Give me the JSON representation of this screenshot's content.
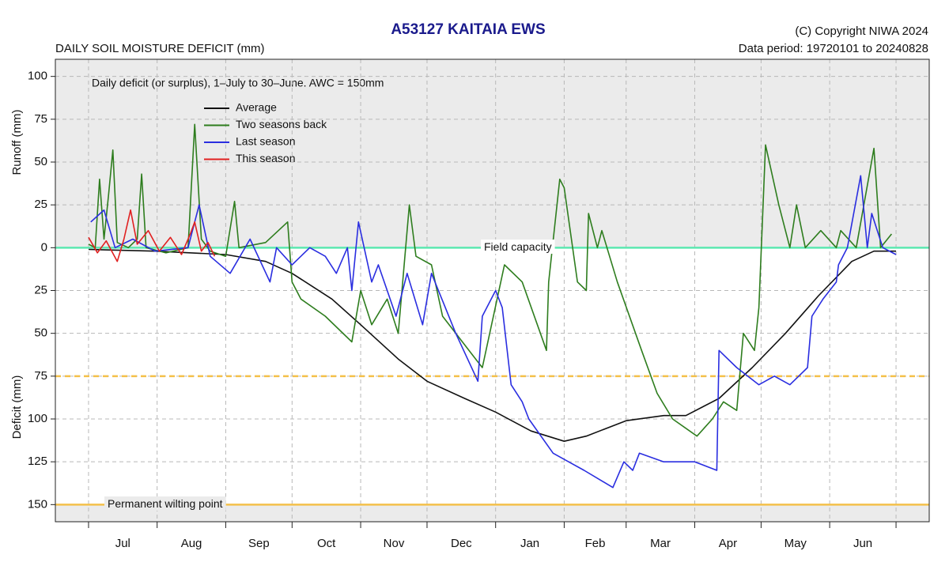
{
  "chart_data": {
    "type": "line",
    "title": "A53127  KAITAIA EWS",
    "subtitle": "DAILY SOIL MOISTURE DEFICIT (mm)",
    "copyright": "(C) Copyright NIWA  2024",
    "data_period": "Data period:  19720101  to  20240828",
    "annotation": "Daily deficit (or surplus), 1–July to 30–June.  AWC = 150mm",
    "y_label_upper": "Runoff (mm)",
    "y_label_lower": "Deficit (mm)",
    "categories": [
      "Jul",
      "Aug",
      "Sep",
      "Oct",
      "Nov",
      "Dec",
      "Jan",
      "Feb",
      "Mar",
      "Apr",
      "May",
      "Jun"
    ],
    "xlim": [
      -15,
      380
    ],
    "xticks": [
      0,
      31,
      62,
      92,
      123,
      153,
      184,
      215,
      243,
      274,
      304,
      335,
      365
    ],
    "ylim": [
      -160,
      110
    ],
    "yticks": [
      100,
      75,
      50,
      25,
      0,
      {
        "value": -25,
        "label": "25"
      },
      {
        "value": -50,
        "label": "50"
      },
      {
        "value": -75,
        "label": "75"
      },
      {
        "value": -100,
        "label": "100"
      },
      {
        "value": -125,
        "label": "125"
      },
      {
        "value": -150,
        "label": "150"
      }
    ],
    "grid": true,
    "reference_lines": [
      {
        "value": 0,
        "label": "Field capacity",
        "color": "#5ce8b0",
        "style": "solid",
        "shade": "above"
      },
      {
        "value": -75,
        "color": "#f4c04a",
        "style": "dashed"
      },
      {
        "value": -150,
        "label": "Permanent wilting point",
        "color": "#f4c04a",
        "style": "solid",
        "shade": "below"
      }
    ],
    "series": [
      {
        "name": "Average",
        "color": "#111111",
        "x": [
          0,
          30,
          62,
          80,
          92,
          110,
          123,
          140,
          153,
          170,
          184,
          200,
          215,
          225,
          243,
          260,
          270,
          285,
          300,
          315,
          330,
          345,
          355,
          365
        ],
        "values": [
          -1,
          -2,
          -4,
          -8,
          -15,
          -30,
          -45,
          -65,
          -78,
          -88,
          -96,
          -107,
          -113,
          -110,
          -101,
          -98,
          -98,
          -88,
          -70,
          -50,
          -28,
          -8,
          -2,
          -2
        ]
      },
      {
        "name": "Two seasons back",
        "color": "#2e7d1e",
        "x": [
          0,
          3,
          5,
          7,
          9,
          11,
          13,
          18,
          22,
          24,
          26,
          35,
          45,
          48,
          51,
          55,
          62,
          66,
          68,
          80,
          90,
          92,
          96,
          107,
          119,
          123,
          128,
          135,
          140,
          145,
          148,
          155,
          160,
          175,
          178,
          188,
          196,
          207,
          208,
          213,
          215,
          221,
          225,
          226,
          230,
          232,
          239,
          250,
          257,
          264,
          275,
          282,
          287,
          293,
          296,
          301,
          303,
          306,
          312,
          317,
          320,
          324,
          331,
          338,
          340,
          347,
          355,
          358,
          363
        ],
        "values": [
          2,
          0,
          40,
          5,
          30,
          57,
          3,
          0,
          5,
          43,
          0,
          -3,
          0,
          72,
          5,
          -2,
          -5,
          27,
          0,
          3,
          15,
          -20,
          -30,
          -40,
          -55,
          -25,
          -45,
          -30,
          -50,
          25,
          -5,
          -10,
          -40,
          -65,
          -70,
          -10,
          -20,
          -60,
          -20,
          40,
          35,
          -20,
          -25,
          20,
          0,
          10,
          -20,
          -60,
          -85,
          -100,
          -110,
          -100,
          -90,
          -95,
          -50,
          -60,
          -35,
          60,
          25,
          0,
          25,
          0,
          10,
          0,
          10,
          0,
          58,
          0,
          8
        ]
      },
      {
        "name": "Last season",
        "color": "#2a2ee0",
        "x": [
          1,
          7,
          12,
          20,
          30,
          45,
          50,
          55,
          64,
          73,
          82,
          85,
          92,
          100,
          107,
          112,
          117,
          119,
          122,
          128,
          131,
          139,
          144,
          151,
          155,
          166,
          176,
          178,
          184,
          187,
          191,
          196,
          199,
          210,
          217,
          224,
          237,
          242,
          246,
          249,
          260,
          274,
          284,
          285,
          293,
          303,
          310,
          317,
          325,
          327,
          332,
          338,
          339,
          343,
          349,
          352,
          354,
          359,
          365
        ],
        "values": [
          15,
          22,
          0,
          5,
          -2,
          0,
          25,
          -5,
          -15,
          5,
          -20,
          0,
          -10,
          0,
          -5,
          -15,
          0,
          -25,
          15,
          -20,
          -10,
          -40,
          -15,
          -45,
          -15,
          -50,
          -78,
          -40,
          -25,
          -35,
          -80,
          -90,
          -100,
          -120,
          -125,
          -130,
          -140,
          -125,
          -130,
          -120,
          -125,
          -125,
          -130,
          -60,
          -70,
          -80,
          -75,
          -80,
          -70,
          -40,
          -30,
          -20,
          -10,
          0,
          42,
          0,
          20,
          0,
          -4
        ]
      },
      {
        "name": "This season",
        "color": "#e02020",
        "x": [
          0,
          4,
          8,
          13,
          16,
          19,
          22,
          27,
          32,
          37,
          42,
          46,
          48,
          51,
          54,
          57
        ],
        "values": [
          6,
          -3,
          4,
          -8,
          5,
          22,
          2,
          10,
          -2,
          6,
          -4,
          8,
          15,
          -2,
          3,
          -5
        ]
      }
    ]
  }
}
